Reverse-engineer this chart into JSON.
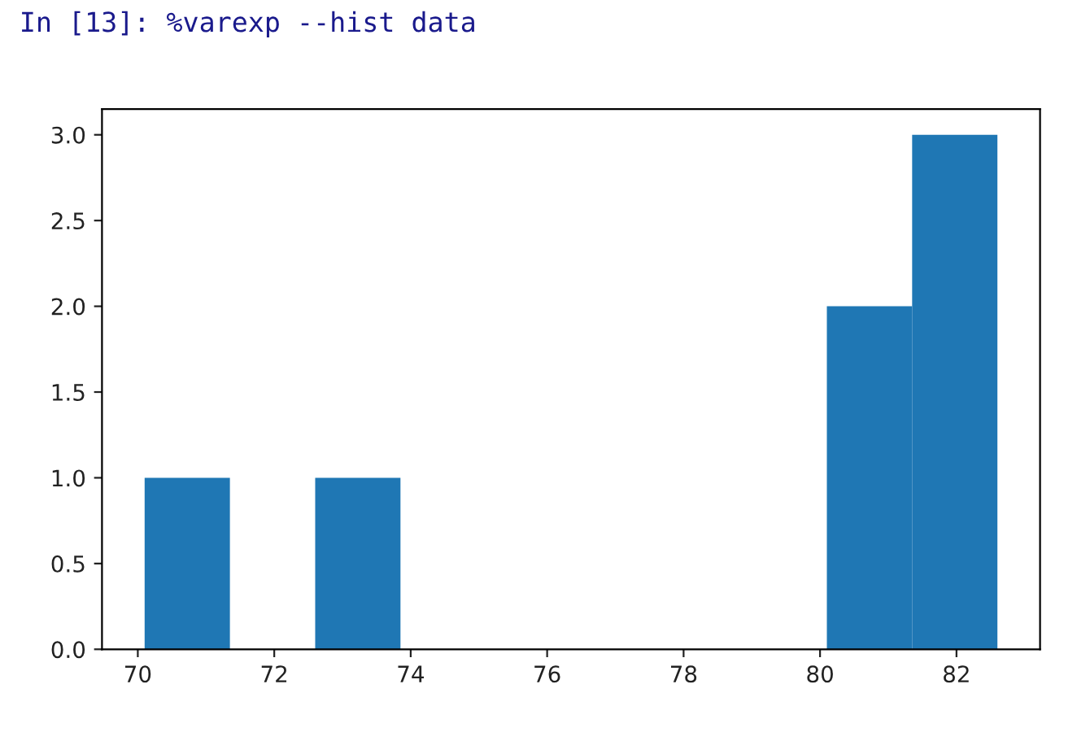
{
  "chart_data": {
    "type": "histogram",
    "title": "In [13]: %varexp --hist data",
    "bins": [
      70.1,
      71.35,
      72.6,
      73.85,
      75.1,
      76.35,
      77.6,
      78.85,
      80.1,
      81.35,
      82.6
    ],
    "values": [
      1,
      0,
      1,
      0,
      0,
      0,
      0,
      0,
      2,
      3
    ],
    "color": "#1f77b4",
    "xlim": [
      69.475,
      83.225
    ],
    "xticks": [
      70,
      72,
      74,
      76,
      78,
      80,
      82
    ],
    "ylim": [
      0,
      3.15
    ],
    "yticks": [
      {
        "value": 0,
        "label": "0.0"
      },
      {
        "value": 0.5,
        "label": "0.5"
      },
      {
        "value": 1,
        "label": "1.0"
      },
      {
        "value": 1.5,
        "label": "1.5"
      },
      {
        "value": 2,
        "label": "2.0"
      },
      {
        "value": 2.5,
        "label": "2.5"
      },
      {
        "value": 3,
        "label": "3.0"
      }
    ],
    "grid": false
  }
}
